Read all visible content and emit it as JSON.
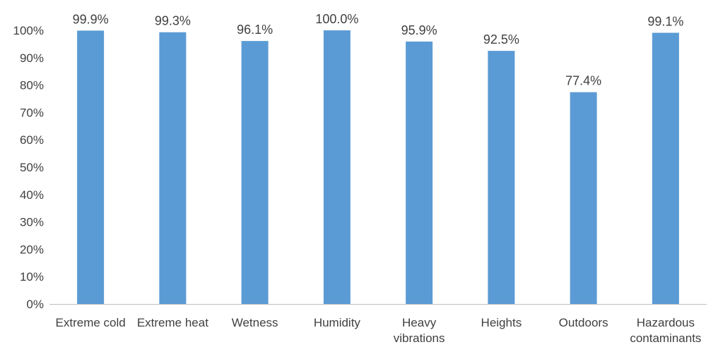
{
  "chart_data": {
    "type": "bar",
    "title": "",
    "xlabel": "",
    "ylabel": "",
    "ylim": [
      0,
      100
    ],
    "y_ticks": [
      "0%",
      "10%",
      "20%",
      "30%",
      "40%",
      "50%",
      "60%",
      "70%",
      "80%",
      "90%",
      "100%"
    ],
    "grid": false,
    "legend": "none",
    "categories": [
      [
        "Extreme cold"
      ],
      [
        "Extreme heat"
      ],
      [
        "Wetness"
      ],
      [
        "Humidity"
      ],
      [
        "Heavy",
        "vibrations"
      ],
      [
        "Heights"
      ],
      [
        "Outdoors"
      ],
      [
        "Hazardous",
        "contaminants"
      ]
    ],
    "values": [
      99.9,
      99.3,
      96.1,
      100.0,
      95.9,
      92.5,
      77.4,
      99.1
    ],
    "data_labels": [
      "99.9%",
      "99.3%",
      "96.1%",
      "100.0%",
      "95.9%",
      "92.5%",
      "77.4%",
      "99.1%"
    ],
    "colors": {
      "bar": "#5B9BD5",
      "axis": "#BFBFBF",
      "text": "#404040"
    }
  }
}
